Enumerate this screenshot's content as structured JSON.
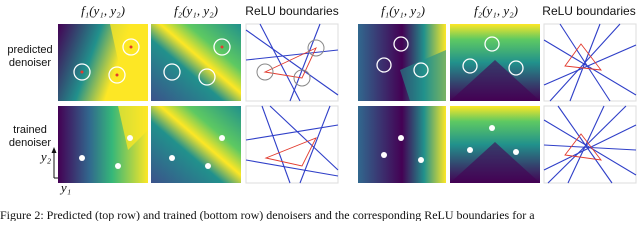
{
  "rows": [
    {
      "line1": "predicted",
      "line2": "denoiser"
    },
    {
      "line1": "trained",
      "line2": "denoiser"
    }
  ],
  "groups": [
    {
      "columns": [
        "f₁(y₁, y₂)",
        "f₂(y₁, y₂)",
        "ReLU boundaries"
      ]
    },
    {
      "columns": [
        "f₁(y₁, y₂)",
        "f₂(y₁, y₂)",
        "ReLU boundaries"
      ]
    }
  ],
  "axes": {
    "y_label": "y₂",
    "x_label": "y₁"
  },
  "caption": "Figure 2: Predicted (top row) and trained (bottom row) denoisers and the corresponding ReLU boundaries for a"
}
